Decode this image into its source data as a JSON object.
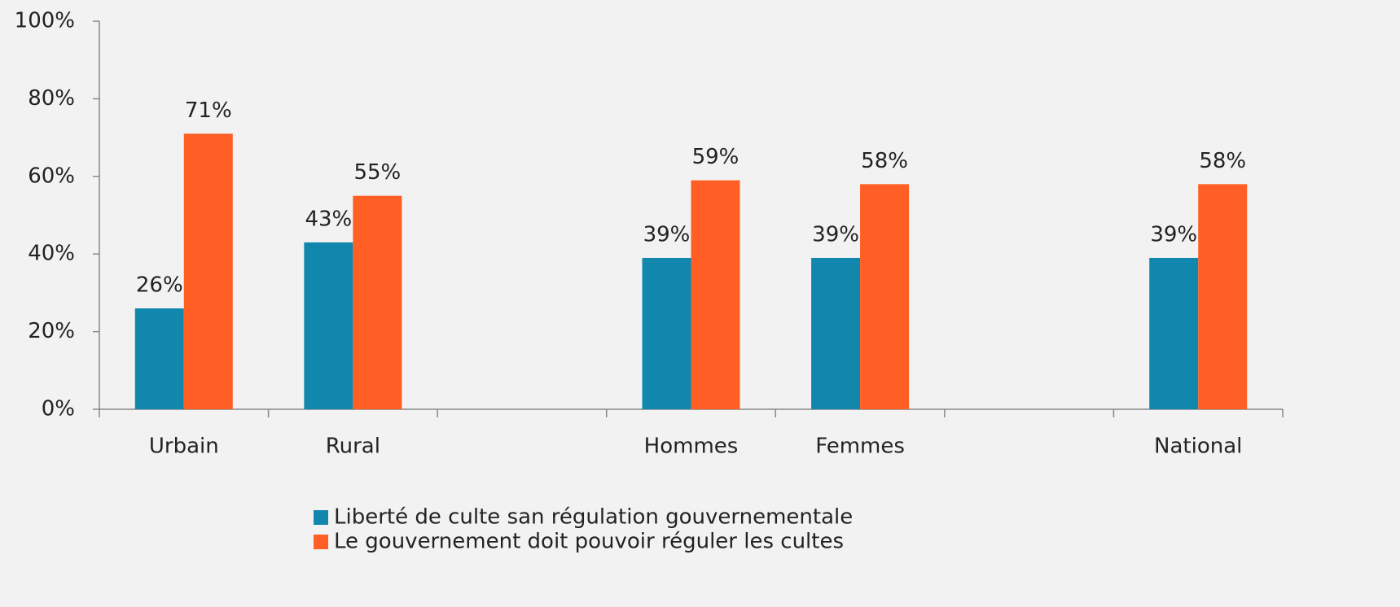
{
  "chart_data": {
    "type": "bar",
    "categories": [
      "Urbain",
      "Rural",
      null,
      "Hommes",
      "Femmes",
      null,
      "National"
    ],
    "series": [
      {
        "name": "Liberté de culte san régulation gouvernementale",
        "color": "#1287ad",
        "values": [
          26,
          43,
          null,
          39,
          39,
          null,
          39
        ],
        "value_labels": [
          "26%",
          "43%",
          null,
          "39%",
          "39%",
          null,
          "39%"
        ]
      },
      {
        "name": "Le gouvernement doit pouvoir réguler les cultes",
        "color": "#ff5f24",
        "values": [
          71,
          55,
          null,
          59,
          58,
          null,
          58
        ],
        "value_labels": [
          "71%",
          "55%",
          null,
          "59%",
          "58%",
          null,
          "58%"
        ]
      }
    ],
    "ylim": [
      0,
      100
    ],
    "yticks": [
      {
        "value": 0,
        "label": "0%"
      },
      {
        "value": 20,
        "label": "20%"
      },
      {
        "value": 40,
        "label": "40%"
      },
      {
        "value": 60,
        "label": "60%"
      },
      {
        "value": 80,
        "label": "80%"
      },
      {
        "value": 100,
        "label": "100%"
      }
    ],
    "legend": "bottom"
  }
}
